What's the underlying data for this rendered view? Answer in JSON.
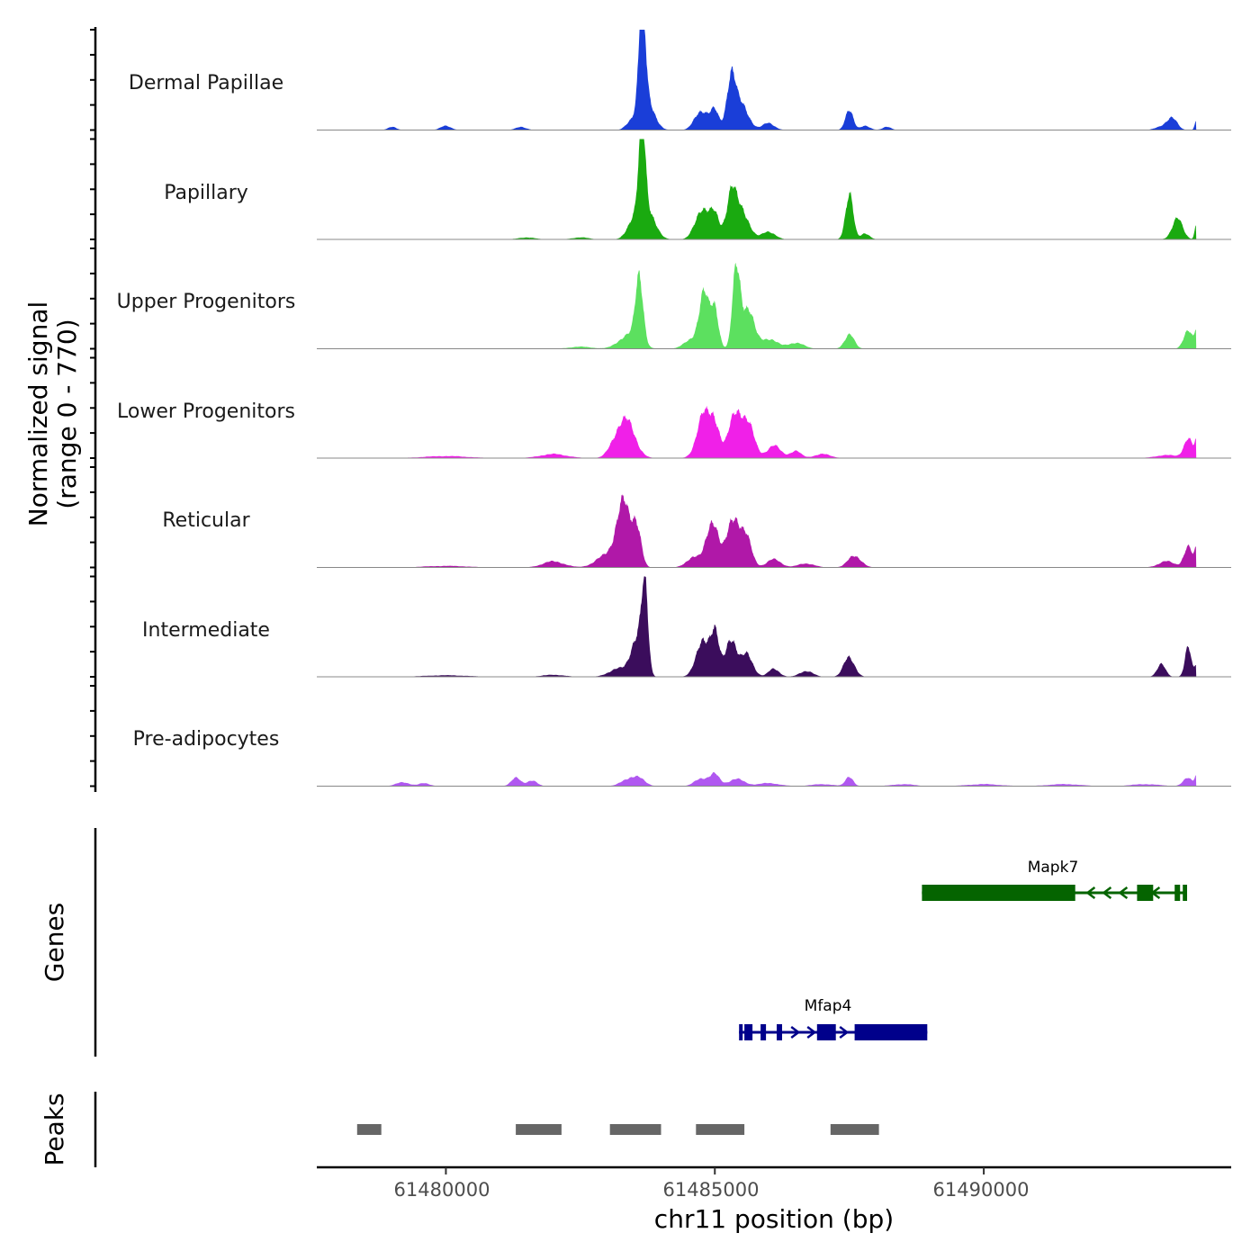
{
  "chart_data": {
    "type": "area",
    "chromosome": "chr11",
    "xlabel": "chr11 position (bp)",
    "ylabel_line1": "Normalized signal",
    "ylabel_line2": "(range 0 - 770)",
    "y_range": [
      0,
      770
    ],
    "x_range": [
      61477600,
      61494600
    ],
    "x_ticks": [
      61480000,
      61485000,
      61490000
    ],
    "x_tick_labels": [
      "61480000",
      "61485000",
      "61490000"
    ],
    "tracks": [
      {
        "name": "Dermal Papillae",
        "color": "#1a3ed8",
        "peaks": [
          [
            61479000,
            3,
            80
          ],
          [
            61480000,
            4,
            100
          ],
          [
            61481400,
            3,
            100
          ],
          [
            61483400,
            5,
            80
          ],
          [
            61483650,
            100,
            55
          ],
          [
            61483700,
            40,
            140
          ],
          [
            61484750,
            20,
            120
          ],
          [
            61485000,
            18,
            80
          ],
          [
            61485300,
            52,
            80
          ],
          [
            61485500,
            25,
            130
          ],
          [
            61486000,
            7,
            110
          ],
          [
            61487500,
            22,
            70
          ],
          [
            61487800,
            4,
            90
          ],
          [
            61488200,
            3,
            80
          ],
          [
            61493500,
            13,
            90
          ],
          [
            61493950,
            10,
            30
          ],
          [
            61493300,
            3,
            120
          ]
        ]
      },
      {
        "name": "Papillary",
        "color": "#1aaa10",
        "peaks": [
          [
            61481500,
            2,
            150
          ],
          [
            61482500,
            2,
            150
          ],
          [
            61483400,
            6,
            90
          ],
          [
            61483650,
            95,
            55
          ],
          [
            61483680,
            40,
            160
          ],
          [
            61484750,
            30,
            120
          ],
          [
            61485000,
            25,
            90
          ],
          [
            61485300,
            40,
            90
          ],
          [
            61485500,
            30,
            130
          ],
          [
            61486000,
            8,
            120
          ],
          [
            61487500,
            48,
            70
          ],
          [
            61487800,
            6,
            80
          ],
          [
            61493600,
            20,
            100
          ],
          [
            61493950,
            15,
            30
          ]
        ]
      },
      {
        "name": "Upper Progenitors",
        "color": "#5ce05f",
        "peaks": [
          [
            61482500,
            2,
            200
          ],
          [
            61483400,
            14,
            180
          ],
          [
            61483600,
            68,
            70
          ],
          [
            61484600,
            10,
            150
          ],
          [
            61484800,
            50,
            90
          ],
          [
            61485000,
            42,
            70
          ],
          [
            61485400,
            75,
            70
          ],
          [
            61485600,
            40,
            120
          ],
          [
            61486000,
            10,
            150
          ],
          [
            61486500,
            6,
            150
          ],
          [
            61487500,
            14,
            90
          ],
          [
            61493800,
            20,
            80
          ],
          [
            61493950,
            16,
            30
          ]
        ]
      },
      {
        "name": "Lower Progenitors",
        "color": "#f020e8",
        "peaks": [
          [
            61480000,
            2,
            400
          ],
          [
            61482000,
            4,
            250
          ],
          [
            61483200,
            20,
            140
          ],
          [
            61483400,
            28,
            150
          ],
          [
            61484800,
            42,
            130
          ],
          [
            61485000,
            30,
            90
          ],
          [
            61485400,
            48,
            130
          ],
          [
            61485650,
            25,
            110
          ],
          [
            61486100,
            12,
            130
          ],
          [
            61486500,
            7,
            100
          ],
          [
            61487000,
            4,
            150
          ],
          [
            61493400,
            3,
            200
          ],
          [
            61493800,
            20,
            80
          ],
          [
            61493950,
            14,
            30
          ]
        ]
      },
      {
        "name": "Reticular",
        "color": "#b018a8",
        "peaks": [
          [
            61480000,
            1.5,
            400
          ],
          [
            61482000,
            6,
            200
          ],
          [
            61483000,
            12,
            200
          ],
          [
            61483300,
            60,
            130
          ],
          [
            61483550,
            40,
            80
          ],
          [
            61484600,
            10,
            130
          ],
          [
            61484950,
            48,
            110
          ],
          [
            61485350,
            52,
            120
          ],
          [
            61485600,
            25,
            100
          ],
          [
            61486100,
            8,
            130
          ],
          [
            61486700,
            4,
            150
          ],
          [
            61487600,
            12,
            120
          ],
          [
            61493400,
            6,
            150
          ],
          [
            61493800,
            20,
            80
          ],
          [
            61493950,
            16,
            30
          ]
        ]
      },
      {
        "name": "Intermediate",
        "color": "#3b0d5c",
        "peaks": [
          [
            61480000,
            1.5,
            400
          ],
          [
            61482000,
            2,
            200
          ],
          [
            61483200,
            8,
            170
          ],
          [
            61483550,
            40,
            110
          ],
          [
            61483700,
            78,
            60
          ],
          [
            61484650,
            8,
            100
          ],
          [
            61484800,
            35,
            100
          ],
          [
            61485000,
            42,
            80
          ],
          [
            61485300,
            40,
            100
          ],
          [
            61485600,
            22,
            110
          ],
          [
            61486100,
            8,
            100
          ],
          [
            61486700,
            6,
            120
          ],
          [
            61487500,
            20,
            100
          ],
          [
            61493300,
            12,
            80
          ],
          [
            61493800,
            28,
            60
          ],
          [
            61493950,
            12,
            30
          ]
        ]
      },
      {
        "name": "Pre-adipocytes",
        "color": "#b058f0",
        "peaks": [
          [
            61479200,
            4,
            120
          ],
          [
            61479600,
            3,
            100
          ],
          [
            61481300,
            8,
            90
          ],
          [
            61481600,
            6,
            90
          ],
          [
            61483400,
            7,
            140
          ],
          [
            61483600,
            6,
            120
          ],
          [
            61484750,
            8,
            120
          ],
          [
            61485000,
            11,
            90
          ],
          [
            61485400,
            7,
            150
          ],
          [
            61486000,
            3,
            200
          ],
          [
            61487000,
            2,
            200
          ],
          [
            61487500,
            10,
            70
          ],
          [
            61488500,
            2,
            200
          ],
          [
            61490000,
            2,
            300
          ],
          [
            61491500,
            2,
            300
          ],
          [
            61493000,
            2,
            250
          ],
          [
            61493800,
            8,
            90
          ],
          [
            61493950,
            10,
            30
          ]
        ]
      }
    ],
    "genes": [
      {
        "name": "Mapk7",
        "strand": "-",
        "color": "#056400",
        "start": 61488850,
        "end": 61493780,
        "exons": [
          [
            61488850,
            61491700
          ],
          [
            61492850,
            61493150
          ],
          [
            61493550,
            61493650
          ],
          [
            61493700,
            61493780
          ]
        ]
      },
      {
        "name": "Mfap4",
        "strand": "+",
        "color": "#00008b",
        "start": 61485450,
        "end": 61488950,
        "exons": [
          [
            61485450,
            61485500
          ],
          [
            61485550,
            61485700
          ],
          [
            61485850,
            61485950
          ],
          [
            61486150,
            61486250
          ],
          [
            61486900,
            61487250
          ],
          [
            61487600,
            61488950
          ]
        ]
      }
    ],
    "peak_regions": [
      [
        61478350,
        61478800
      ],
      [
        61481300,
        61482150
      ],
      [
        61483050,
        61484000
      ],
      [
        61484650,
        61485550
      ],
      [
        61487150,
        61488050
      ]
    ],
    "peaks_color": "#666666"
  },
  "labels": {
    "genes_track": "Genes",
    "peaks_track": "Peaks"
  }
}
